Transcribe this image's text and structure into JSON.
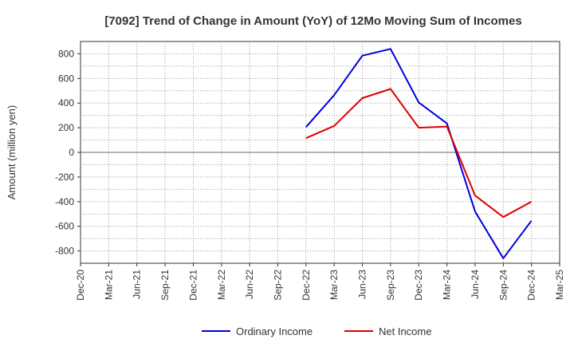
{
  "chart_data": {
    "type": "line",
    "title": "[7092]  Trend of Change in Amount (YoY) of 12Mo Moving Sum of Incomes",
    "xlabel": "",
    "ylabel": "Amount (million yen)",
    "x": [
      "Dec-20",
      "Mar-21",
      "Jun-21",
      "Sep-21",
      "Dec-21",
      "Mar-22",
      "Jun-22",
      "Sep-22",
      "Dec-22",
      "Mar-23",
      "Jun-23",
      "Sep-23",
      "Dec-23",
      "Mar-24",
      "Jun-24",
      "Sep-24",
      "Dec-24",
      "Mar-25"
    ],
    "yticks": [
      800,
      600,
      400,
      200,
      0,
      -200,
      -400,
      -600,
      -800
    ],
    "ylim": [
      -900,
      900
    ],
    "grid": true,
    "legend_position": "bottom",
    "series": [
      {
        "name": "Ordinary Income",
        "color": "#0000dd",
        "values": [
          null,
          null,
          null,
          null,
          null,
          null,
          null,
          null,
          205,
          465,
          785,
          840,
          405,
          235,
          -480,
          -860,
          -555,
          null
        ]
      },
      {
        "name": "Net Income",
        "color": "#dd0000",
        "values": [
          null,
          null,
          null,
          null,
          null,
          null,
          null,
          null,
          115,
          215,
          440,
          515,
          200,
          210,
          -350,
          -525,
          -400,
          null
        ]
      }
    ]
  }
}
